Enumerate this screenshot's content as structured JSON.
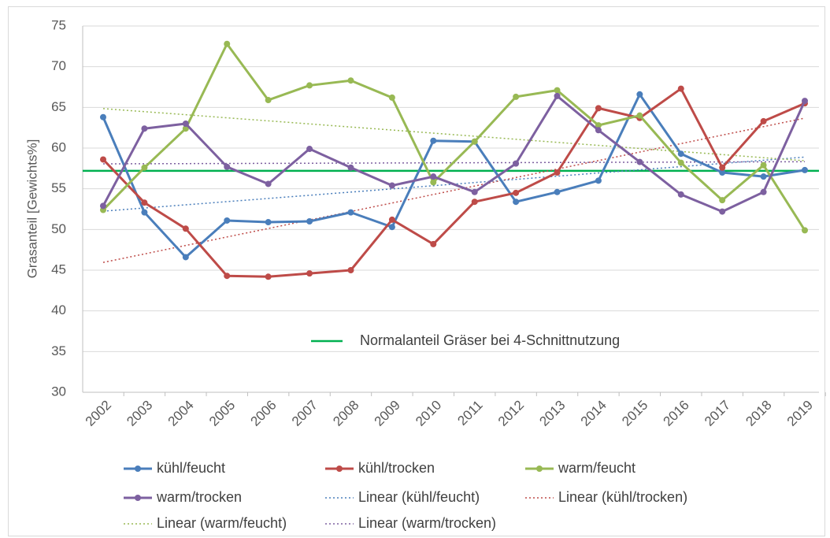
{
  "chart_data": {
    "type": "line",
    "y_label": "Grasanteil [Gewichts%]",
    "categories": [
      "2002",
      "2003",
      "2004",
      "2005",
      "2006",
      "2007",
      "2008",
      "2009",
      "2010",
      "2011",
      "2012",
      "2013",
      "2014",
      "2015",
      "2016",
      "2017",
      "2018",
      "2019"
    ],
    "series": [
      {
        "name": "kühl/feucht",
        "color": "#4a7ebb",
        "trend_name": "Linear (kühl/feucht)",
        "values": [
          63.8,
          52.1,
          46.6,
          51.1,
          50.9,
          51.0,
          52.1,
          50.3,
          60.9,
          60.8,
          53.4,
          54.6,
          56.0,
          66.6,
          59.3,
          57.0,
          56.5,
          57.3
        ]
      },
      {
        "name": "kühl/trocken",
        "color": "#be4b48",
        "trend_name": "Linear (kühl/trocken)",
        "values": [
          58.6,
          53.3,
          50.1,
          44.3,
          44.2,
          44.6,
          45.0,
          51.2,
          48.2,
          53.4,
          54.5,
          57.0,
          64.9,
          63.7,
          67.3,
          57.6,
          63.3,
          65.5
        ]
      },
      {
        "name": "warm/feucht",
        "color": "#98b954",
        "trend_name": "Linear (warm/feucht)",
        "values": [
          52.4,
          57.6,
          62.4,
          72.8,
          65.9,
          67.7,
          68.3,
          66.2,
          55.8,
          60.8,
          66.3,
          67.1,
          62.8,
          64.0,
          58.2,
          53.6,
          57.9,
          49.9
        ]
      },
      {
        "name": "warm/trocken",
        "color": "#7d60a0",
        "trend_name": "Linear (warm/trocken)",
        "values": [
          52.9,
          62.4,
          63.0,
          57.7,
          55.6,
          59.9,
          57.6,
          55.4,
          56.5,
          54.6,
          58.1,
          66.4,
          62.2,
          58.3,
          54.3,
          52.2,
          54.6,
          65.8
        ]
      }
    ],
    "reference_line": {
      "label": "Normalanteil Gräser bei 4-Schnittnutzung",
      "value": 57.2,
      "color": "#00b050"
    },
    "ylim": [
      30,
      75
    ],
    "yticks": [
      30,
      35,
      40,
      45,
      50,
      55,
      60,
      65,
      70,
      75
    ],
    "grid": true
  }
}
